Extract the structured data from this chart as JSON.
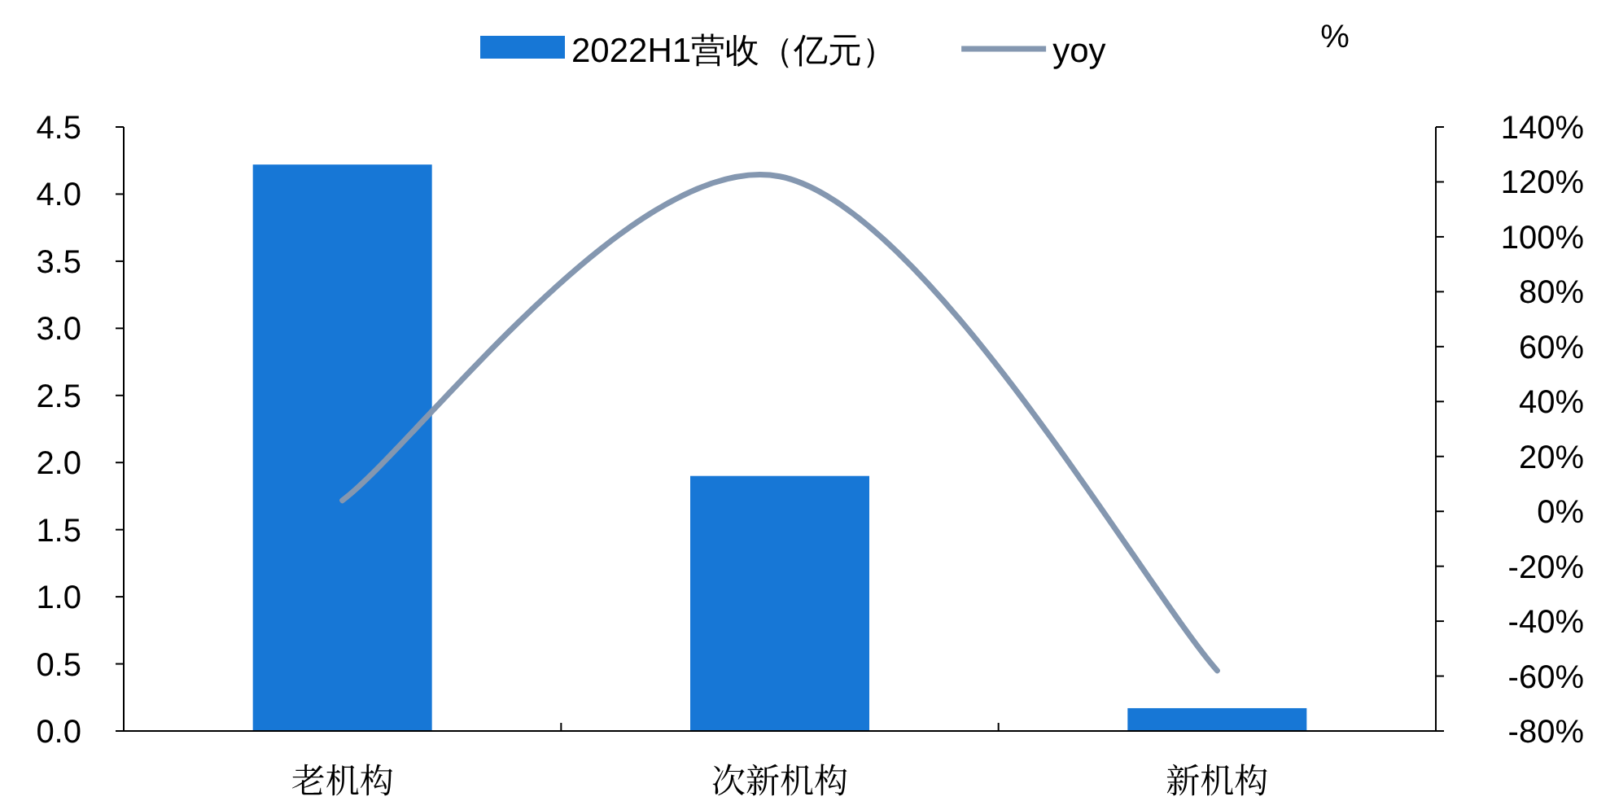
{
  "chart_data": {
    "type": "bar",
    "categories": [
      "老机构",
      "次新机构",
      "新机构"
    ],
    "series": [
      {
        "name": "2022H1营收（亿元）",
        "color": "#1777d6",
        "values": [
          4.22,
          1.9,
          0.17
        ]
      },
      {
        "name": "yoy",
        "type": "line",
        "axis": "y2",
        "color": "#8497b0",
        "values": [
          4,
          122,
          -58
        ]
      }
    ],
    "y2label": "%",
    "ylim": [
      0,
      4.5
    ],
    "yticks": [
      {
        "value": 0,
        "label": "0.0"
      },
      0.5,
      {
        "value": 1,
        "label": "1.0"
      },
      1.5,
      {
        "value": 2,
        "label": "2.0"
      },
      2.5,
      {
        "value": 3,
        "label": "3.0"
      },
      3.5,
      {
        "value": 4,
        "label": "4.0"
      },
      4.5
    ],
    "y2lim": [
      -80,
      140
    ],
    "y2ticks": [
      {
        "value": -80,
        "label": "-80%"
      },
      {
        "value": -60,
        "label": "-60%"
      },
      {
        "value": -40,
        "label": "-40%"
      },
      {
        "value": -20,
        "label": "-20%"
      },
      {
        "value": 0,
        "label": "0%"
      },
      {
        "value": 20,
        "label": "20%"
      },
      {
        "value": 40,
        "label": "40%"
      },
      {
        "value": 60,
        "label": "60%"
      },
      {
        "value": 80,
        "label": "80%"
      },
      {
        "value": 100,
        "label": "100%"
      },
      {
        "value": 120,
        "label": "120%"
      },
      {
        "value": 140,
        "label": "140%"
      }
    ],
    "legend": "top",
    "grid": false
  }
}
